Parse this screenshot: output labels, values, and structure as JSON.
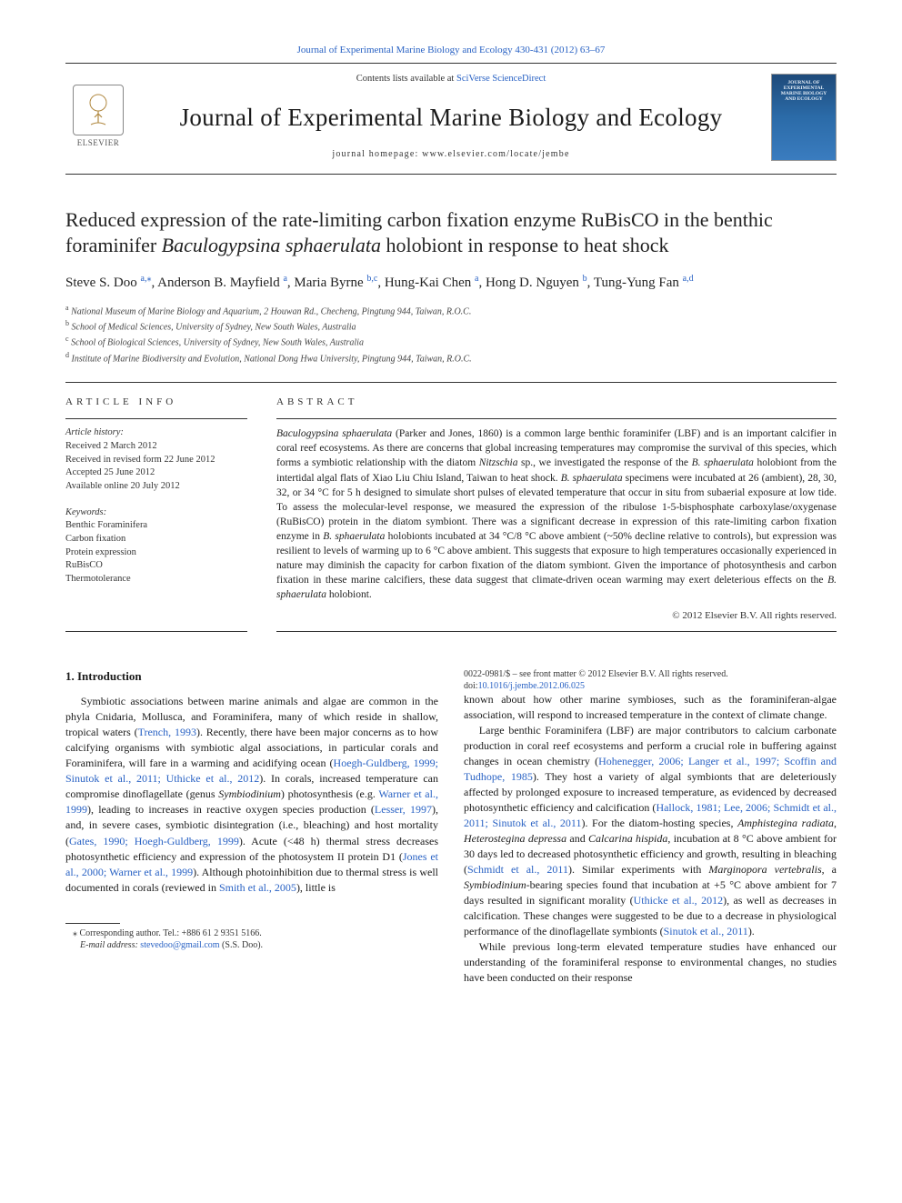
{
  "topCitation": "Journal of Experimental Marine Biology and Ecology 430-431 (2012) 63–67",
  "masthead": {
    "contentsPrefix": "Contents lists available at ",
    "contentsLink": "SciVerse ScienceDirect",
    "journalName": "Journal of Experimental Marine Biology and Ecology",
    "homepage": "journal homepage: www.elsevier.com/locate/jembe",
    "publisherLogo": "ELSEVIER",
    "coverText": "JOURNAL OF EXPERIMENTAL MARINE BIOLOGY AND ECOLOGY"
  },
  "title": {
    "pre": "Reduced expression of the rate-limiting carbon fixation enzyme RuBisCO in the benthic foraminifer ",
    "ital": "Baculogypsina sphaerulata",
    "post": " holobiont in response to heat shock"
  },
  "authors": [
    {
      "name": "Steve S. Doo",
      "sup": "a,",
      "star": true
    },
    {
      "name": "Anderson B. Mayfield",
      "sup": "a"
    },
    {
      "name": "Maria Byrne",
      "sup": "b,c"
    },
    {
      "name": "Hung-Kai Chen",
      "sup": "a"
    },
    {
      "name": "Hong D. Nguyen",
      "sup": "b"
    },
    {
      "name": "Tung-Yung Fan",
      "sup": "a,d"
    }
  ],
  "affiliations": [
    {
      "key": "a",
      "text": "National Museum of Marine Biology and Aquarium, 2 Houwan Rd., Checheng, Pingtung 944, Taiwan, R.O.C."
    },
    {
      "key": "b",
      "text": "School of Medical Sciences, University of Sydney, New South Wales, Australia"
    },
    {
      "key": "c",
      "text": "School of Biological Sciences, University of Sydney, New South Wales, Australia"
    },
    {
      "key": "d",
      "text": "Institute of Marine Biodiversity and Evolution, National Dong Hwa University, Pingtung 944, Taiwan, R.O.C."
    }
  ],
  "articleInfo": {
    "heading": "article info",
    "historyLabel": "Article history:",
    "history": [
      "Received 2 March 2012",
      "Received in revised form 22 June 2012",
      "Accepted 25 June 2012",
      "Available online 20 July 2012"
    ],
    "keywordsLabel": "Keywords:",
    "keywords": [
      "Benthic Foraminifera",
      "Carbon fixation",
      "Protein expression",
      "RuBisCO",
      "Thermotolerance"
    ]
  },
  "abstractHeading": "abstract",
  "abstractHtml": "<span class=\"ital\">Baculogypsina sphaerulata</span> (Parker and Jones, 1860) is a common large benthic foraminifer (LBF) and is an important calcifier in coral reef ecosystems. As there are concerns that global increasing temperatures may compromise the survival of this species, which forms a symbiotic relationship with the diatom <span class=\"ital\">Nitzschia</span> sp., we investigated the response of the <span class=\"ital\">B. sphaerulata</span> holobiont from the intertidal algal flats of Xiao Liu Chiu Island, Taiwan to heat shock. <span class=\"ital\">B. sphaerulata</span> specimens were incubated at 26 (ambient), 28, 30, 32, or 34 °C for 5 h designed to simulate short pulses of elevated temperature that occur in situ from subaerial exposure at low tide. To assess the molecular-level response, we measured the expression of the ribulose 1-5-bisphosphate carboxylase/oxygenase (RuBisCO) protein in the diatom symbiont. There was a significant decrease in expression of this rate-limiting carbon fixation enzyme in <span class=\"ital\">B. sphaerulata</span> holobionts incubated at 34 °C/8 °C above ambient (~50% decline relative to controls), but expression was resilient to levels of warming up to 6 °C above ambient. This suggests that exposure to high temperatures occasionally experienced in nature may diminish the capacity for carbon fixation of the diatom symbiont. Given the importance of photosynthesis and carbon fixation in these marine calcifiers, these data suggest that climate-driven ocean warming may exert deleterious effects on the <span class=\"ital\">B. sphaerulata</span> holobiont.",
  "copyright": "© 2012 Elsevier B.V. All rights reserved.",
  "intro": {
    "heading": "1. Introduction",
    "p1": "Symbiotic associations between marine animals and algae are common in the phyla Cnidaria, Mollusca, and Foraminifera, many of which reside in shallow, tropical waters (<span class=\"cite\">Trench, 1993</span>). Recently, there have been major concerns as to how calcifying organisms with symbiotic algal associations, in particular corals and Foraminifera, will fare in a warming and acidifying ocean (<span class=\"cite\">Hoegh-Guldberg, 1999; Sinutok et al., 2011; Uthicke et al., 2012</span>). In corals, increased temperature can compromise dinoflagellate (genus <span class=\"ital\">Symbiodinium</span>) photosynthesis (e.g. <span class=\"cite\">Warner et al., 1999</span>), leading to increases in reactive oxygen species production (<span class=\"cite\">Lesser, 1997</span>), and, in severe cases, symbiotic disintegration (i.e., bleaching) and host mortality (<span class=\"cite\">Gates, 1990; Hoegh-Guldberg, 1999</span>). Acute (&lt;48 h) thermal stress decreases photosynthetic efficiency and expression of the photosystem II protein D1 (<span class=\"cite\">Jones et al., 2000; Warner et al., 1999</span>). Although photoinhibition due to thermal stress is well documented in corals (reviewed in <span class=\"cite\">Smith et al., 2005</span>), little is",
    "p2": "known about how other marine symbioses, such as the foraminiferan-algae association, will respond to increased temperature in the context of climate change.",
    "p3": "Large benthic Foraminifera (LBF) are major contributors to calcium carbonate production in coral reef ecosystems and perform a crucial role in buffering against changes in ocean chemistry (<span class=\"cite\">Hohenegger, 2006; Langer et al., 1997; Scoffin and Tudhope, 1985</span>). They host a variety of algal symbionts that are deleteriously affected by prolonged exposure to increased temperature, as evidenced by decreased photosynthetic efficiency and calcification (<span class=\"cite\">Hallock, 1981; Lee, 2006; Schmidt et al., 2011; Sinutok et al., 2011</span>). For the diatom-hosting species, <span class=\"ital\">Amphistegina radiata</span>, <span class=\"ital\">Heterostegina depressa</span> and <span class=\"ital\">Calcarina hispida</span>, incubation at 8 °C above ambient for 30 days led to decreased photosynthetic efficiency and growth, resulting in bleaching (<span class=\"cite\">Schmidt et al., 2011</span>). Similar experiments with <span class=\"ital\">Marginopora vertebralis</span>, a <span class=\"ital\">Symbiodinium</span>-bearing species found that incubation at +5 °C above ambient for 7 days resulted in significant morality (<span class=\"cite\">Uthicke et al., 2012</span>), as well as decreases in calcification. These changes were suggested to be due to a decrease in physiological performance of the dinoflagellate symbionts (<span class=\"cite\">Sinutok et al., 2011</span>).",
    "p4": "While previous long-term elevated temperature studies have enhanced our understanding of the foraminiferal response to environmental changes, no studies have been conducted on their response"
  },
  "footnote": {
    "corrLabel": "⁎ Corresponding author. Tel.: ",
    "tel": "+886 61 2 9351 5166.",
    "emailLabel": "E-mail address: ",
    "email": "stevedoo@gmail.com",
    "emailPerson": " (S.S. Doo)."
  },
  "bottom": {
    "issn": "0022-0981/$ – see front matter © 2012 Elsevier B.V. All rights reserved.",
    "doiLabel": "doi:",
    "doi": "10.1016/j.jembe.2012.06.025"
  },
  "colors": {
    "link": "#2962c4",
    "text": "#1a1a1a",
    "rule": "#333333"
  }
}
